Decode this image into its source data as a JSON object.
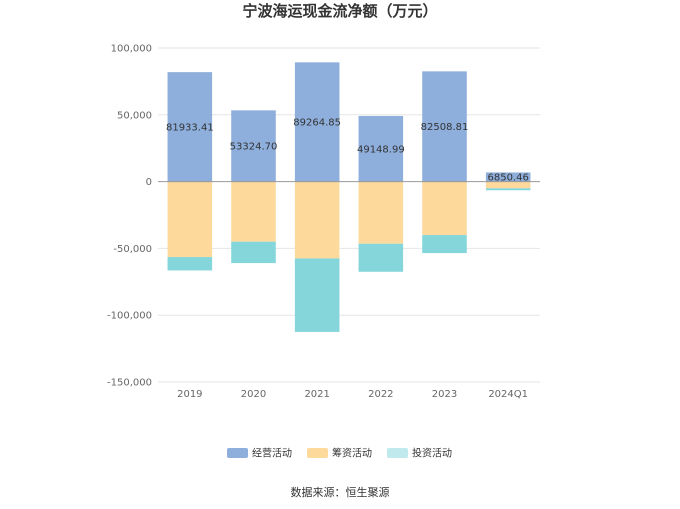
{
  "chart_data": {
    "type": "bar",
    "stacked": true,
    "title": "宁波海运现金流净额（万元）",
    "categories": [
      "2019",
      "2020",
      "2021",
      "2022",
      "2023",
      "2024Q1"
    ],
    "series": [
      {
        "name": "经营活动",
        "color": "#8eaedc",
        "values": [
          81933.41,
          53324.7,
          89264.85,
          49148.99,
          82508.81,
          6850.46
        ],
        "labels": [
          "81933.41",
          "53324.70",
          "89264.85",
          "49148.99",
          "82508.81",
          "6850.46"
        ]
      },
      {
        "name": "筹资活动",
        "color": "#fdd99b",
        "values": [
          -56500,
          -45000,
          -57500,
          -46500,
          -40000,
          -5000
        ]
      },
      {
        "name": "投资活动",
        "color": "#84d6da",
        "values": [
          -10000,
          -16000,
          -55000,
          -21000,
          -13500,
          -1500
        ]
      }
    ],
    "y_ticks": [
      100000,
      50000,
      0,
      -50000,
      -100000,
      -150000
    ],
    "y_tick_labels": [
      "100,000",
      "50,000",
      "0",
      "-50,000",
      "-100,000",
      "-150,000"
    ],
    "ylim": [
      -150000,
      100000
    ],
    "legend_position": "bottom-center",
    "grid": true
  },
  "source": "数据来源：恒生聚源",
  "colors": {
    "grid": "#e6e6e6",
    "axis": "#999999"
  }
}
